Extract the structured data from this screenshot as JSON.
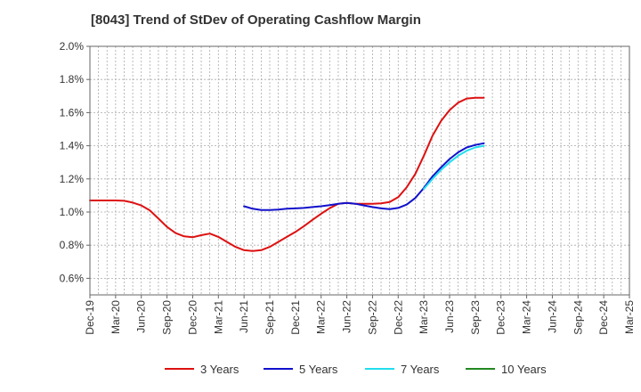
{
  "chart_data": {
    "type": "line",
    "title": "[8043]  Trend of StDev of Operating Cashflow Margin",
    "xlabel": "",
    "ylabel": "",
    "ylim": [
      0.5,
      2.0
    ],
    "y_ticks": [
      "2.0%",
      "1.8%",
      "1.6%",
      "1.4%",
      "1.2%",
      "1.0%",
      "0.8%",
      "0.6%"
    ],
    "y_tick_values": [
      2.0,
      1.8,
      1.6,
      1.4,
      1.2,
      1.0,
      0.8,
      0.6
    ],
    "x_ticks": [
      "Dec-19",
      "Mar-20",
      "Jun-20",
      "Sep-20",
      "Dec-20",
      "Mar-21",
      "Jun-21",
      "Sep-21",
      "Dec-21",
      "Mar-22",
      "Jun-22",
      "Sep-22",
      "Dec-22",
      "Mar-23",
      "Jun-23",
      "Sep-23",
      "Dec-23",
      "Mar-24",
      "Jun-24",
      "Sep-24",
      "Dec-24",
      "Mar-25"
    ],
    "grid": true,
    "legend_position": "bottom",
    "series": [
      {
        "name": "3 Years",
        "color": "#dd1111",
        "values": [
          1.07,
          1.07,
          1.07,
          1.07,
          1.068,
          1.057,
          1.04,
          1.01,
          0.96,
          0.91,
          0.873,
          0.853,
          0.848,
          0.86,
          0.87,
          0.85,
          0.82,
          0.79,
          0.77,
          0.765,
          0.77,
          0.79,
          0.82,
          0.85,
          0.88,
          0.915,
          0.953,
          0.99,
          1.023,
          1.05,
          1.055,
          1.05,
          1.05,
          1.05,
          1.052,
          1.06,
          1.09,
          1.15,
          1.23,
          1.34,
          1.46,
          1.55,
          1.615,
          1.66,
          1.685,
          1.69,
          1.69
        ]
      },
      {
        "name": "5 Years",
        "color": "#1111cc",
        "values": [
          null,
          null,
          null,
          null,
          null,
          null,
          null,
          null,
          null,
          null,
          null,
          null,
          null,
          null,
          null,
          null,
          null,
          null,
          1.035,
          1.02,
          1.012,
          1.012,
          1.015,
          1.02,
          1.022,
          1.025,
          1.03,
          1.035,
          1.042,
          1.05,
          1.055,
          1.05,
          1.04,
          1.03,
          1.022,
          1.018,
          1.025,
          1.045,
          1.085,
          1.145,
          1.215,
          1.27,
          1.32,
          1.36,
          1.39,
          1.405,
          1.415
        ]
      },
      {
        "name": "7 Years",
        "color": "#22ddee",
        "values": [
          null,
          null,
          null,
          null,
          null,
          null,
          null,
          null,
          null,
          null,
          null,
          null,
          null,
          null,
          null,
          null,
          null,
          null,
          null,
          null,
          null,
          null,
          null,
          null,
          null,
          null,
          null,
          null,
          null,
          null,
          null,
          null,
          null,
          null,
          null,
          null,
          null,
          null,
          null,
          1.14,
          1.2,
          1.255,
          1.3,
          1.34,
          1.37,
          1.39,
          1.4
        ]
      },
      {
        "name": "10 Years",
        "color": "#228822",
        "values": []
      }
    ]
  }
}
